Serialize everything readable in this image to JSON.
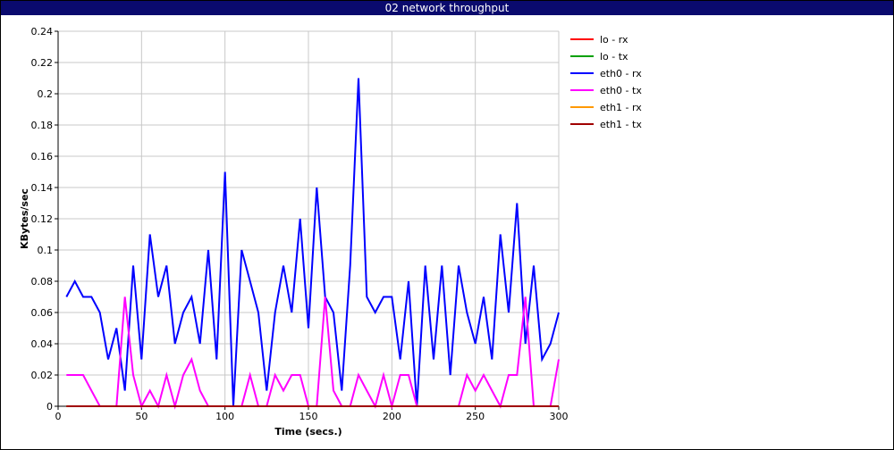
{
  "window": {
    "title": "02 network throughput",
    "title_bar_color": "#0a0a6e"
  },
  "chart_data": {
    "type": "line",
    "title": "02 network throughput",
    "xlabel": "Time (secs.)",
    "ylabel": "KBytes/sec",
    "xlim": [
      0,
      300
    ],
    "ylim": [
      0,
      0.24
    ],
    "xticks": [
      "0",
      "50",
      "100",
      "150",
      "200",
      "250",
      "300"
    ],
    "yticks": [
      "0",
      "0.02",
      "0.04",
      "0.06",
      "0.08",
      "0.1",
      "0.12",
      "0.14",
      "0.16",
      "0.18",
      "0.2",
      "0.22",
      "0.24"
    ],
    "grid": true,
    "legend_position": "right",
    "series": [
      {
        "name": "lo - rx",
        "color": "#ff0000",
        "x": [
          5,
          300
        ],
        "y": [
          0,
          0
        ]
      },
      {
        "name": "lo - tx",
        "color": "#00a000",
        "x": [
          5,
          300
        ],
        "y": [
          0,
          0
        ]
      },
      {
        "name": "eth0 - rx",
        "color": "#0000ff",
        "x": [
          5,
          10,
          15,
          20,
          25,
          30,
          35,
          40,
          45,
          50,
          55,
          60,
          65,
          70,
          75,
          80,
          85,
          90,
          95,
          100,
          105,
          110,
          115,
          120,
          125,
          130,
          135,
          140,
          145,
          150,
          155,
          160,
          165,
          170,
          175,
          180,
          185,
          190,
          195,
          200,
          205,
          210,
          215,
          220,
          225,
          230,
          235,
          240,
          245,
          250,
          255,
          260,
          265,
          270,
          275,
          280,
          285,
          290,
          295,
          300
        ],
        "y": [
          0.07,
          0.08,
          0.07,
          0.07,
          0.06,
          0.03,
          0.05,
          0.01,
          0.09,
          0.03,
          0.11,
          0.07,
          0.09,
          0.04,
          0.06,
          0.07,
          0.04,
          0.1,
          0.03,
          0.15,
          0.0,
          0.1,
          0.08,
          0.06,
          0.01,
          0.06,
          0.09,
          0.06,
          0.12,
          0.05,
          0.14,
          0.07,
          0.06,
          0.01,
          0.09,
          0.21,
          0.07,
          0.06,
          0.07,
          0.07,
          0.03,
          0.08,
          0.0,
          0.09,
          0.03,
          0.09,
          0.02,
          0.09,
          0.06,
          0.04,
          0.07,
          0.03,
          0.11,
          0.06,
          0.13,
          0.04,
          0.09,
          0.03,
          0.04,
          0.06
        ]
      },
      {
        "name": "eth0 - tx",
        "color": "#ff00ff",
        "x": [
          5,
          10,
          15,
          20,
          25,
          30,
          35,
          40,
          45,
          50,
          55,
          60,
          65,
          70,
          75,
          80,
          85,
          90,
          95,
          100,
          105,
          110,
          115,
          120,
          125,
          130,
          135,
          140,
          145,
          150,
          155,
          160,
          165,
          170,
          175,
          180,
          185,
          190,
          195,
          200,
          205,
          210,
          215,
          220,
          225,
          230,
          235,
          240,
          245,
          250,
          255,
          260,
          265,
          270,
          275,
          280,
          285,
          290,
          295,
          300
        ],
        "y": [
          0.02,
          0.02,
          0.02,
          0.01,
          0.0,
          0.0,
          0.0,
          0.07,
          0.02,
          0.0,
          0.01,
          0.0,
          0.02,
          0.0,
          0.02,
          0.03,
          0.01,
          0.0,
          0.0,
          0.0,
          0.0,
          0.0,
          0.02,
          0.0,
          0.0,
          0.02,
          0.01,
          0.02,
          0.02,
          0.0,
          0.0,
          0.07,
          0.01,
          0.0,
          0.0,
          0.02,
          0.01,
          0.0,
          0.02,
          0.0,
          0.02,
          0.02,
          0.0,
          0.0,
          0.0,
          0.0,
          0.0,
          0.0,
          0.02,
          0.01,
          0.02,
          0.01,
          0.0,
          0.02,
          0.02,
          0.07,
          0.0,
          0.0,
          0.0,
          0.03
        ]
      },
      {
        "name": "eth1 - rx",
        "color": "#ff9900",
        "x": [
          5,
          300
        ],
        "y": [
          0,
          0
        ]
      },
      {
        "name": "eth1 - tx",
        "color": "#a00000",
        "x": [
          5,
          300
        ],
        "y": [
          0,
          0
        ]
      }
    ]
  }
}
